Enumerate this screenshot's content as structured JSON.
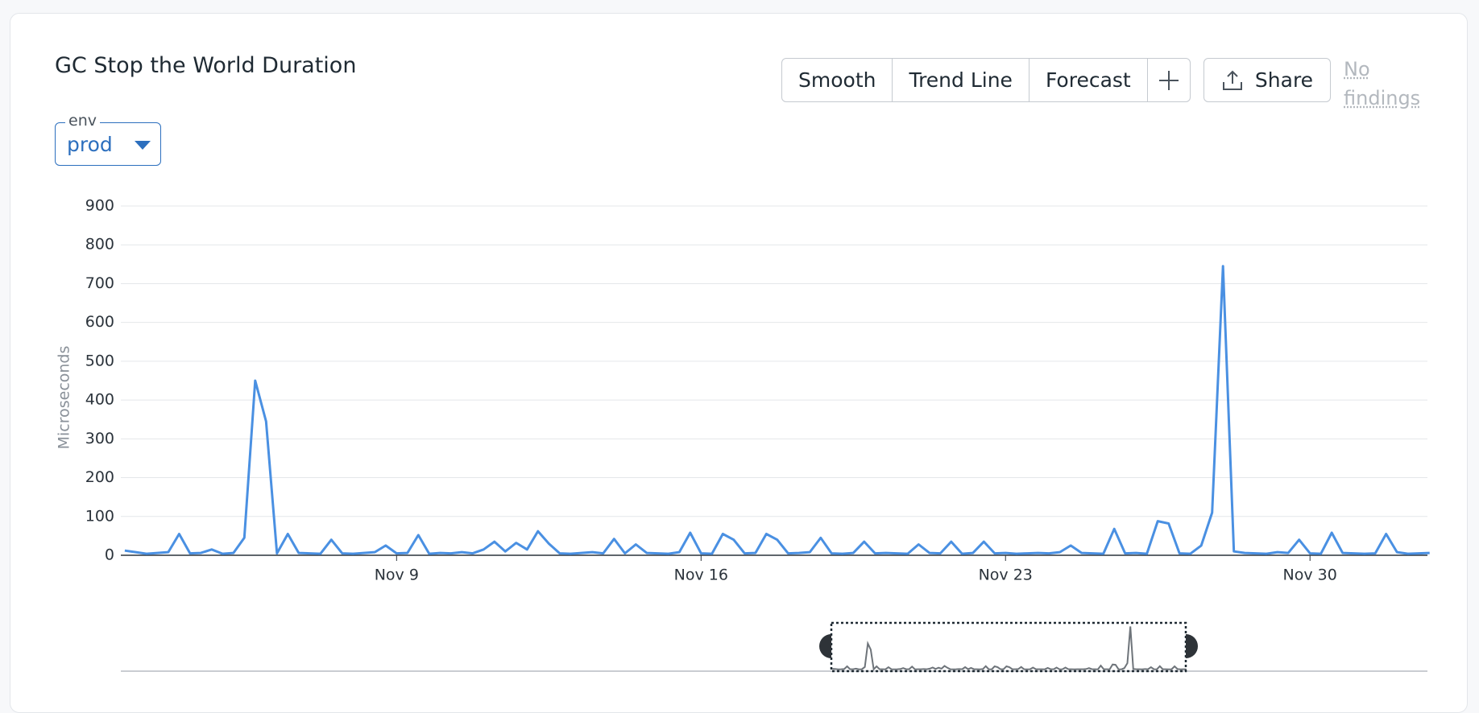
{
  "ui": {
    "buttons": [
      "Smooth",
      "Trend Line",
      "Forecast"
    ],
    "share": "Share",
    "findings": "No findings",
    "filter": {
      "label": "env",
      "value": "prod"
    }
  },
  "chart_data": {
    "type": "line",
    "title": "GC Stop the World Duration",
    "y_label": "Microseconds",
    "color": "#4a90e2",
    "x": [
      2.75,
      3,
      3.25,
      3.5,
      3.75,
      4,
      4.25,
      4.5,
      4.75,
      5,
      5.25,
      5.5,
      5.75,
      6,
      6.25,
      6.5,
      6.75,
      7,
      7.25,
      7.5,
      7.75,
      8,
      8.25,
      8.5,
      8.75,
      9,
      9.25,
      9.5,
      9.75,
      10,
      10.25,
      10.5,
      10.75,
      11,
      11.25,
      11.5,
      11.75,
      12,
      12.25,
      12.5,
      12.75,
      13,
      13.25,
      13.5,
      13.75,
      14,
      14.25,
      14.5,
      14.75,
      15,
      15.25,
      15.5,
      15.75,
      16,
      16.25,
      16.5,
      16.75,
      17,
      17.25,
      17.5,
      17.75,
      18,
      18.25,
      18.5,
      18.75,
      19,
      19.25,
      19.5,
      19.75,
      20,
      20.25,
      20.5,
      20.75,
      21,
      21.25,
      21.5,
      21.75,
      22,
      22.25,
      22.5,
      22.75,
      23,
      23.25,
      23.5,
      23.75,
      24,
      24.25,
      24.5,
      24.75,
      25,
      25.25,
      25.5,
      25.75,
      26,
      26.25,
      26.5,
      26.75,
      27,
      27.25,
      27.5,
      27.75,
      28,
      28.25,
      28.5,
      28.75,
      29,
      29.25,
      29.5,
      29.75,
      30,
      30.25,
      30.5,
      30.75,
      31,
      31.25,
      31.5,
      31.75,
      32,
      32.25,
      32.5,
      32.75
    ],
    "values": [
      12,
      8,
      4,
      6,
      8,
      55,
      5,
      6,
      15,
      4,
      6,
      45,
      450,
      345,
      5,
      55,
      6,
      5,
      4,
      40,
      5,
      4,
      6,
      8,
      25,
      5,
      6,
      52,
      4,
      6,
      5,
      8,
      5,
      15,
      35,
      10,
      32,
      15,
      62,
      30,
      5,
      4,
      6,
      8,
      5,
      42,
      5,
      28,
      6,
      5,
      4,
      8,
      58,
      5,
      4,
      55,
      40,
      5,
      6,
      55,
      40,
      5,
      6,
      8,
      45,
      5,
      4,
      6,
      35,
      5,
      6,
      5,
      4,
      28,
      6,
      5,
      35,
      4,
      6,
      35,
      5,
      6,
      4,
      5,
      6,
      5,
      8,
      25,
      6,
      5,
      4,
      68,
      5,
      6,
      4,
      88,
      82,
      5,
      4,
      25,
      110,
      745,
      10,
      6,
      5,
      4,
      8,
      6,
      40,
      5,
      4,
      58,
      6,
      5,
      4,
      5,
      55,
      8,
      4,
      5,
      6
    ],
    "xlim": [
      2.66,
      32.7
    ],
    "xticks": [
      {
        "value": 9,
        "label": "Nov 9"
      },
      {
        "value": 16,
        "label": "Nov 16"
      },
      {
        "value": 23,
        "label": "Nov 23"
      },
      {
        "value": 30,
        "label": "Nov 30"
      }
    ],
    "ylim": [
      0,
      900
    ],
    "yticks": [
      0,
      100,
      200,
      300,
      400,
      500,
      600,
      700,
      800,
      900
    ],
    "grid": true
  }
}
